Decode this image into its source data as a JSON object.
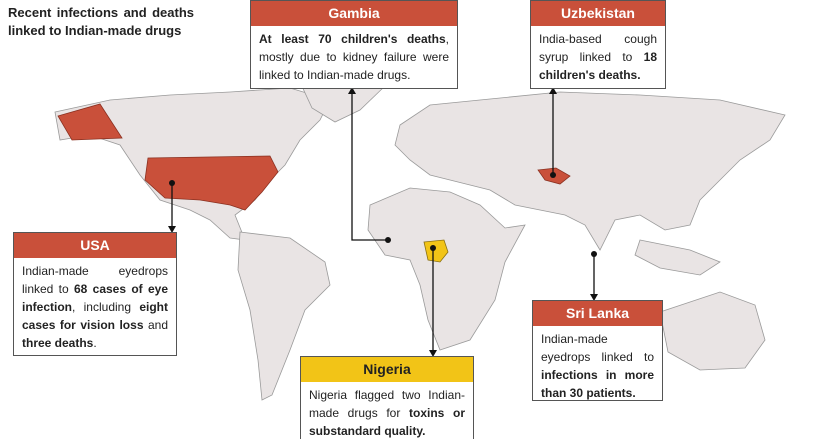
{
  "title": "Recent infections and deaths linked to Indian-made drugs",
  "callouts": [
    {
      "country": "Gambia",
      "header_color": "#c9503a",
      "body": [
        {
          "text": "At least 70 children's deaths",
          "bold": true
        },
        {
          "text": ", mostly due to kidney failure were linked to Indian-made drugs.",
          "bold": false
        }
      ]
    },
    {
      "country": "Uzbekistan",
      "header_color": "#c9503a",
      "body": [
        {
          "text": "India-based cough syrup linked to ",
          "bold": false
        },
        {
          "text": "18 children's deaths.",
          "bold": true
        }
      ]
    },
    {
      "country": "USA",
      "header_color": "#c9503a",
      "body": [
        {
          "text": "Indian-made eyedrops linked to ",
          "bold": false
        },
        {
          "text": "68 cases of eye infection",
          "bold": true
        },
        {
          "text": ", including ",
          "bold": false
        },
        {
          "text": "eight cases for vision loss",
          "bold": true
        },
        {
          "text": " and ",
          "bold": false
        },
        {
          "text": "three deaths",
          "bold": true
        },
        {
          "text": ".",
          "bold": false
        }
      ]
    },
    {
      "country": "Sri Lanka",
      "header_color": "#c9503a",
      "body": [
        {
          "text": "Indian-made eyedrops linked to ",
          "bold": false
        },
        {
          "text": "infections in more than 30 patients.",
          "bold": true
        }
      ]
    },
    {
      "country": "Nigeria",
      "header_color": "#f2c417",
      "body": [
        {
          "text": "Nigeria flagged two Indian-made drugs for ",
          "bold": false
        },
        {
          "text": "toxins or substandard quality.",
          "bold": true
        }
      ]
    }
  ]
}
